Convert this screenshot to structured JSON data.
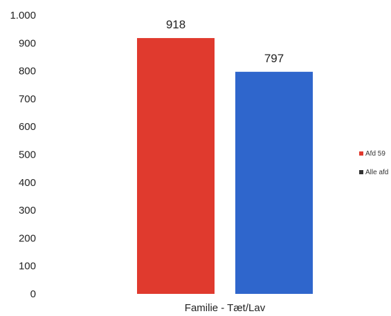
{
  "chart_data": {
    "type": "bar",
    "categories": [
      "Familie - Tæt/Lav"
    ],
    "series": [
      {
        "name": "Afd 59",
        "values": [
          918
        ],
        "color": "#e03a2e"
      },
      {
        "name": "Alle afd",
        "values": [
          797
        ],
        "color": "#2f66cc"
      }
    ],
    "ylim": [
      0,
      1000
    ],
    "yticks": [
      0,
      100,
      200,
      300,
      400,
      500,
      600,
      700,
      800,
      900,
      1000
    ],
    "ytick_labels": [
      "0",
      "100",
      "200",
      "300",
      "400",
      "500",
      "600",
      "700",
      "800",
      "900",
      "1.000"
    ],
    "data_labels": [
      "918",
      "797"
    ],
    "legend": {
      "position": "right",
      "entries": [
        {
          "label": "Afd 59",
          "color": "#e03a2e"
        },
        {
          "label": "Alle afd",
          "color": "#333333"
        }
      ]
    },
    "grid": false,
    "title": "",
    "xlabel": "",
    "ylabel": ""
  }
}
